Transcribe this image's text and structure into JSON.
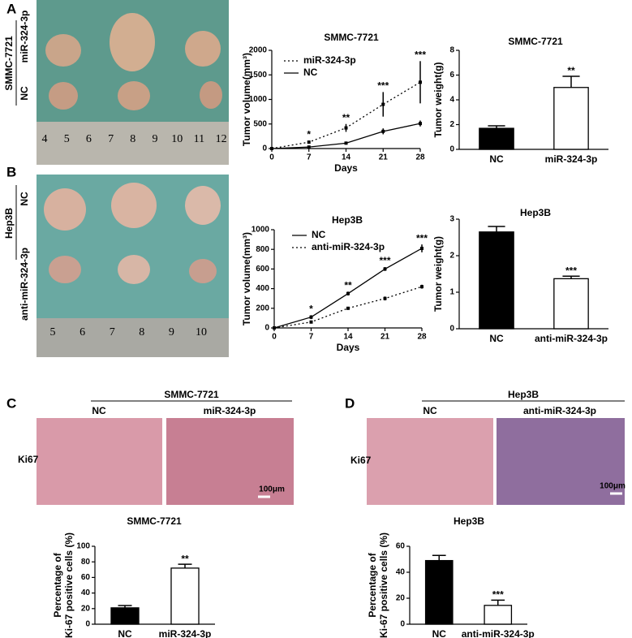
{
  "panels": [
    "A",
    "B",
    "C",
    "D"
  ],
  "photo_labels": {
    "a_cell": "SMMC-7721",
    "a_mir": "miR-324-3p",
    "a_nc": "NC",
    "b_cell": "Hep3B",
    "b_nc": "NC",
    "b_anti": "anti-miR-324-3p",
    "c_cell": "SMMC-7721",
    "c_nc": "NC",
    "c_mir": "miR-324-3p",
    "c_ki67": "Ki67",
    "c_scale": "100μm",
    "d_cell": "Hep3B",
    "d_nc": "NC",
    "d_anti": "anti-miR-324-3p",
    "d_ki67": "Ki67",
    "d_scale": "100μm"
  },
  "rulers": {
    "a": [
      "4",
      "5",
      "6",
      "7",
      "8",
      "9",
      "10",
      "11",
      "12"
    ],
    "b": [
      "5",
      "6",
      "7",
      "8",
      "9",
      "10"
    ]
  },
  "chart_data": [
    {
      "type": "line",
      "title": "SMMC-7721",
      "xlabel": "Days",
      "ylabel": "Tumor volume(mm³)",
      "x": [
        0,
        7,
        14,
        21,
        28
      ],
      "xlim": [
        0,
        28
      ],
      "xticks": [
        0,
        7,
        14,
        21,
        28
      ],
      "ylim": [
        0,
        2000
      ],
      "yticks": [
        0,
        500,
        1000,
        1500,
        2000
      ],
      "series": [
        {
          "name": "miR-324-3p",
          "color": "#000000",
          "dashed": true,
          "values": [
            0,
            130,
            420,
            900,
            1350
          ],
          "errors": [
            0,
            30,
            80,
            250,
            430
          ]
        },
        {
          "name": "NC",
          "color": "#000000",
          "dashed": false,
          "values": [
            0,
            30,
            110,
            350,
            510
          ],
          "errors": [
            0,
            10,
            15,
            60,
            60
          ]
        }
      ],
      "annotations": [
        null,
        "*",
        "**",
        "***",
        "***"
      ]
    },
    {
      "type": "bar",
      "title": "SMMC-7721",
      "ylabel": "Tumor weight(g)",
      "categories": [
        "NC",
        "miR-324-3p"
      ],
      "values": [
        1.7,
        5.0
      ],
      "errors": [
        0.2,
        0.9
      ],
      "colors": [
        "#000000",
        "#ffffff"
      ],
      "ylim": [
        0,
        8
      ],
      "yticks": [
        0,
        2,
        4,
        6,
        8
      ],
      "annotations": [
        null,
        "**"
      ]
    },
    {
      "type": "line",
      "title": "Hep3B",
      "xlabel": "Days",
      "ylabel": "Tumor volume(mm³)",
      "x": [
        0,
        7,
        14,
        21,
        28
      ],
      "xlim": [
        0,
        28
      ],
      "xticks": [
        0,
        7,
        14,
        21,
        28
      ],
      "ylim": [
        0,
        1000
      ],
      "yticks": [
        0,
        200,
        400,
        600,
        800,
        1000
      ],
      "series": [
        {
          "name": "NC",
          "color": "#000000",
          "dashed": false,
          "values": [
            0,
            110,
            350,
            600,
            810
          ],
          "errors": [
            0,
            20,
            20,
            20,
            40
          ]
        },
        {
          "name": "anti-miR-324-3p",
          "color": "#000000",
          "dashed": true,
          "values": [
            0,
            60,
            200,
            300,
            420
          ],
          "errors": [
            0,
            10,
            15,
            20,
            20
          ]
        }
      ],
      "annotations": [
        null,
        "*",
        "**",
        "***",
        "***"
      ]
    },
    {
      "type": "bar",
      "title": "Hep3B",
      "ylabel": "Tumor weight(g)",
      "categories": [
        "NC",
        "anti-miR-324-3p"
      ],
      "values": [
        2.65,
        1.37
      ],
      "errors": [
        0.15,
        0.07
      ],
      "colors": [
        "#000000",
        "#ffffff"
      ],
      "ylim": [
        0,
        3
      ],
      "yticks": [
        0,
        1,
        2,
        3
      ],
      "annotations": [
        null,
        "***"
      ]
    },
    {
      "type": "bar",
      "title": "SMMC-7721",
      "ylabel": [
        "Percentage of",
        "Ki-67 positive cells (%)"
      ],
      "categories": [
        "NC",
        "miR-324-3p"
      ],
      "values": [
        21,
        72
      ],
      "errors": [
        3,
        5
      ],
      "colors": [
        "#000000",
        "#ffffff"
      ],
      "ylim": [
        0,
        100
      ],
      "yticks": [
        0,
        20,
        40,
        60,
        80,
        100
      ],
      "annotations": [
        null,
        "**"
      ]
    },
    {
      "type": "bar",
      "title": "Hep3B",
      "ylabel": [
        "Percentage of",
        "Ki-67 positive cells (%)"
      ],
      "categories": [
        "NC",
        "anti-miR-324-3p"
      ],
      "values": [
        49,
        14.5
      ],
      "errors": [
        4,
        4
      ],
      "colors": [
        "#000000",
        "#ffffff"
      ],
      "ylim": [
        0,
        60
      ],
      "yticks": [
        0,
        20,
        40,
        60
      ],
      "annotations": [
        null,
        "***"
      ]
    }
  ]
}
